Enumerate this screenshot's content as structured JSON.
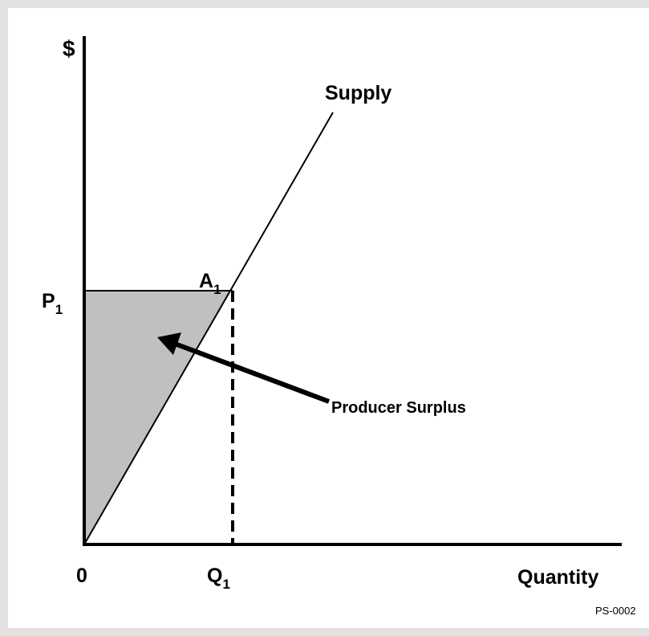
{
  "y_axis_label": "$",
  "x_axis_label": "Quantity",
  "curve_label": "Supply",
  "origin_label": "0",
  "price_label": {
    "text": "P",
    "sub": "1"
  },
  "quantity_label": {
    "text": "Q",
    "sub": "1"
  },
  "point_label": {
    "text": "A",
    "sub": "1"
  },
  "area_label": "Producer Surplus",
  "figure_id": "PS-0002"
}
